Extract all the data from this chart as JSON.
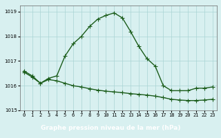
{
  "title": "Graphe pression niveau de la mer (hPa)",
  "bg_color": "#c8e8e8",
  "plot_bg_color": "#d8f0f0",
  "grid_color": "#aad4d4",
  "line_color": "#1a5c1a",
  "title_bg_color": "#4a7a5a",
  "title_text_color": "#ffffff",
  "line1": [
    1016.6,
    1016.4,
    1016.1,
    1016.3,
    1016.4,
    1017.2,
    1017.7,
    1018.0,
    1018.4,
    1018.7,
    1018.85,
    1018.95,
    1018.75,
    1018.2,
    1017.6,
    1017.1,
    1016.8,
    1016.0,
    1015.8,
    1015.8,
    1015.8,
    1015.9,
    1015.9,
    1015.95
  ],
  "line2": [
    1016.55,
    1016.35,
    1016.1,
    1016.25,
    1016.2,
    1016.1,
    1016.0,
    1015.95,
    1015.88,
    1015.82,
    1015.78,
    1015.75,
    1015.72,
    1015.68,
    1015.65,
    1015.62,
    1015.58,
    1015.52,
    1015.45,
    1015.42,
    1015.4,
    1015.4,
    1015.42,
    1015.45
  ],
  "ylim": [
    1015.0,
    1019.25
  ],
  "yticks": [
    1015,
    1016,
    1017,
    1018,
    1019
  ],
  "xlim": [
    -0.5,
    23.5
  ],
  "xticks": [
    0,
    1,
    2,
    3,
    4,
    5,
    6,
    7,
    8,
    9,
    10,
    11,
    12,
    13,
    14,
    15,
    16,
    17,
    18,
    19,
    20,
    21,
    22,
    23
  ],
  "marker": "+",
  "markersize": 4,
  "linewidth": 1.0,
  "title_fontsize": 6.5,
  "tick_fontsize": 5.0
}
